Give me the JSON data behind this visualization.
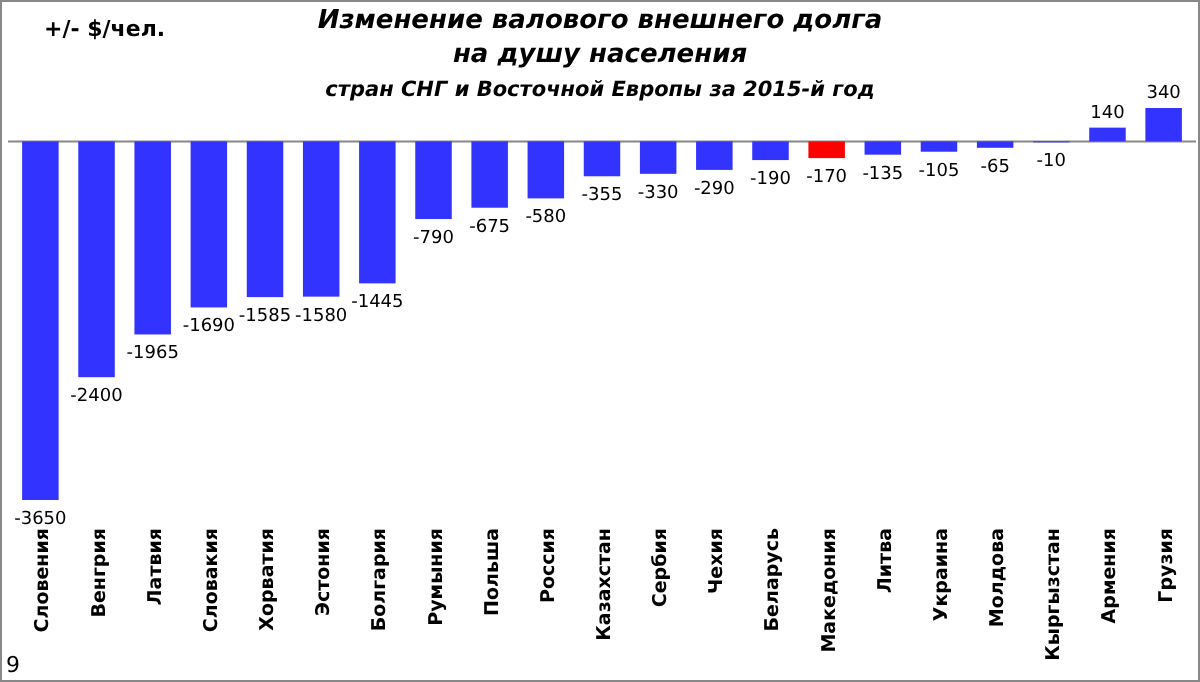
{
  "chart_data": {
    "type": "bar",
    "title": "Изменение валового  внешнего долга\nна душу населения",
    "subtitle": "стран СНГ и Восточной  Европы  за 2015-й год",
    "ylabel": "+/- $/чел.",
    "categories": [
      "Словения",
      "Венгрия",
      "Латвия",
      "Словакия",
      "Хорватия",
      "Эстония",
      "Болгария",
      "Румыния",
      "Польша",
      "Россия",
      "Казахстан",
      "Сербия",
      "Чехия",
      "Беларусь",
      "Македония",
      "Литва",
      "Украина",
      "Молдова",
      "Кыргызстан",
      "Армения",
      "Грузия"
    ],
    "values": [
      -3650,
      -2400,
      -1965,
      -1690,
      -1585,
      -1580,
      -1445,
      -790,
      -675,
      -580,
      -355,
      -330,
      -290,
      -190,
      -170,
      -135,
      -105,
      -65,
      -10,
      140,
      340
    ],
    "colors": [
      "#3333ff",
      "#3333ff",
      "#3333ff",
      "#3333ff",
      "#3333ff",
      "#3333ff",
      "#3333ff",
      "#3333ff",
      "#3333ff",
      "#3333ff",
      "#3333ff",
      "#3333ff",
      "#3333ff",
      "#3333ff",
      "#ff0000",
      "#3333ff",
      "#3333ff",
      "#3333ff",
      "#3333ff",
      "#3333ff",
      "#3333ff"
    ],
    "data_labels": true,
    "annotations": [
      "9"
    ]
  }
}
